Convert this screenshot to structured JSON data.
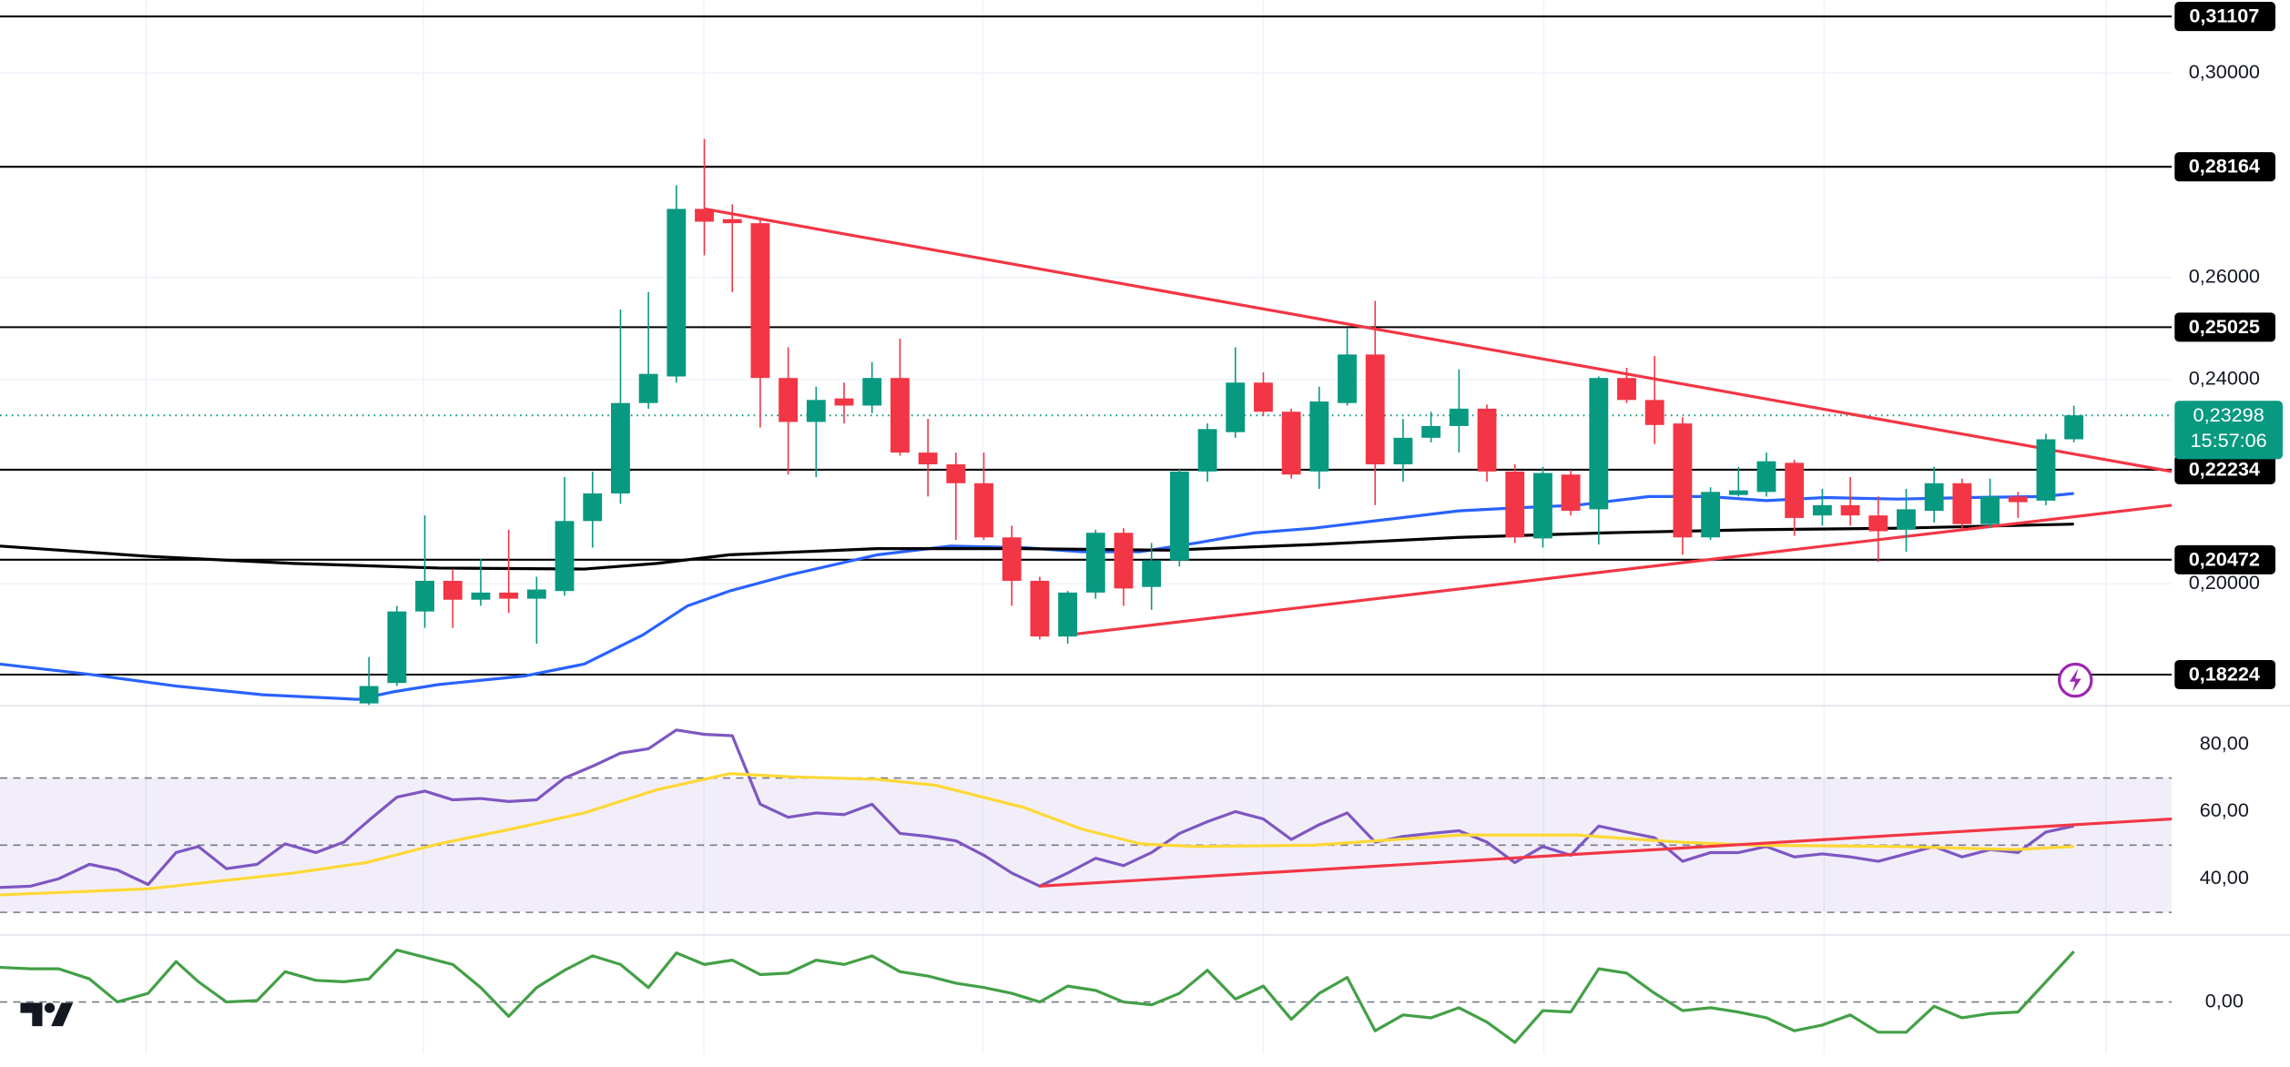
{
  "chart_data": [
    {
      "type": "candlestick",
      "xlim": [
        -12.2,
        65.5
      ],
      "ylim": [
        0.17629,
        0.31429
      ],
      "yticks": [
        {
          "value": 0.3,
          "label": "0,30000"
        },
        {
          "value": 0.26,
          "label": "0,26000"
        },
        {
          "value": 0.24,
          "label": "0,24000"
        },
        {
          "value": 0.2,
          "label": "0,20000"
        }
      ],
      "grid": true,
      "up_color": "#089981",
      "down_color": "#f23645",
      "x": [
        1,
        2,
        3,
        4,
        5,
        6,
        7,
        8,
        9,
        10,
        11,
        12,
        13,
        14,
        15,
        16,
        17,
        18,
        19,
        20,
        21,
        22,
        23,
        24,
        25,
        26,
        27,
        28,
        29,
        30,
        31,
        32,
        33,
        34,
        35,
        36,
        37,
        38,
        39,
        40,
        41,
        42,
        43,
        44,
        45,
        46,
        47,
        48,
        49,
        50,
        51,
        52,
        53,
        54,
        55,
        56,
        57,
        58,
        59,
        60,
        61,
        62
      ],
      "open": [
        0.1766,
        0.1806,
        0.1946,
        0.2006,
        0.1969,
        0.1983,
        0.1971,
        0.1986,
        0.2123,
        0.2177,
        0.2354,
        0.2406,
        0.2734,
        0.2714,
        0.2706,
        0.2403,
        0.2317,
        0.2363,
        0.2349,
        0.2403,
        0.2257,
        0.2234,
        0.2197,
        0.2091,
        0.2006,
        0.1897,
        0.1983,
        0.21,
        0.1994,
        0.2046,
        0.222,
        0.2297,
        0.2394,
        0.2337,
        0.222,
        0.2354,
        0.2449,
        0.2234,
        0.2286,
        0.2309,
        0.2343,
        0.222,
        0.2089,
        0.2214,
        0.2146,
        0.2403,
        0.236,
        0.2314,
        0.2091,
        0.2174,
        0.218,
        0.2237,
        0.2134,
        0.2154,
        0.2134,
        0.2106,
        0.2143,
        0.2197,
        0.2117,
        0.2171,
        0.2163,
        0.2283
      ],
      "high": [
        0.1857,
        0.1957,
        0.2134,
        0.2029,
        0.2049,
        0.2106,
        0.2014,
        0.2209,
        0.222,
        0.2537,
        0.2571,
        0.278,
        0.2871,
        0.2743,
        0.2714,
        0.2463,
        0.2386,
        0.2394,
        0.2434,
        0.248,
        0.2323,
        0.2257,
        0.2257,
        0.2114,
        0.2014,
        0.1986,
        0.2106,
        0.2109,
        0.208,
        0.2226,
        0.2314,
        0.2463,
        0.2414,
        0.2343,
        0.2386,
        0.25,
        0.2554,
        0.2323,
        0.2337,
        0.242,
        0.2351,
        0.2234,
        0.2229,
        0.2223,
        0.2406,
        0.2423,
        0.2446,
        0.2326,
        0.2189,
        0.2229,
        0.2257,
        0.2243,
        0.2186,
        0.2209,
        0.2171,
        0.2186,
        0.2229,
        0.2206,
        0.2206,
        0.218,
        0.2294,
        0.2349
      ],
      "low": [
        0.1763,
        0.18,
        0.1914,
        0.1914,
        0.1957,
        0.1943,
        0.1883,
        0.1977,
        0.2071,
        0.2157,
        0.2343,
        0.2394,
        0.2643,
        0.2571,
        0.2306,
        0.2214,
        0.2209,
        0.2314,
        0.2334,
        0.2251,
        0.2171,
        0.2086,
        0.2086,
        0.1957,
        0.1891,
        0.1883,
        0.1971,
        0.1957,
        0.1949,
        0.2034,
        0.22,
        0.2286,
        0.2329,
        0.2206,
        0.2186,
        0.2349,
        0.2154,
        0.22,
        0.2277,
        0.2257,
        0.22,
        0.208,
        0.2071,
        0.2134,
        0.2077,
        0.2354,
        0.2274,
        0.2057,
        0.2086,
        0.2171,
        0.2171,
        0.2094,
        0.2114,
        0.2114,
        0.2043,
        0.2063,
        0.212,
        0.2106,
        0.2109,
        0.2129,
        0.2154,
        0.2277
      ],
      "close": [
        0.18,
        0.1946,
        0.2006,
        0.1969,
        0.1983,
        0.1971,
        0.1989,
        0.2123,
        0.2177,
        0.2354,
        0.2411,
        0.2734,
        0.2709,
        0.2706,
        0.2403,
        0.2317,
        0.236,
        0.2349,
        0.2403,
        0.2257,
        0.2234,
        0.2197,
        0.2091,
        0.2006,
        0.1897,
        0.1983,
        0.21,
        0.1991,
        0.2046,
        0.222,
        0.2303,
        0.2394,
        0.2337,
        0.2214,
        0.2357,
        0.2449,
        0.2234,
        0.2286,
        0.2309,
        0.2343,
        0.222,
        0.2091,
        0.2217,
        0.2143,
        0.2403,
        0.236,
        0.2311,
        0.2091,
        0.218,
        0.2183,
        0.224,
        0.2129,
        0.2154,
        0.2134,
        0.2103,
        0.2146,
        0.2197,
        0.2117,
        0.2171,
        0.216,
        0.2283,
        0.233
      ],
      "series": [
        {
          "color": "#2962ff",
          "x": [
            -12.2,
            -9.0,
            -5.9,
            -2.8,
            0.6,
            1.9,
            3.5,
            6.6,
            8.7,
            10.8,
            12.4,
            13.9,
            16.0,
            19.2,
            21.8,
            24.4,
            26.5,
            28.6,
            30.6,
            32.7,
            34.8,
            37.4,
            40.0,
            42.1,
            44.2,
            46.8,
            48.9,
            51.0,
            53.1,
            55.7,
            58.3,
            60.9,
            62.0
          ],
          "values": [
            0.1843,
            0.1823,
            0.18,
            0.1783,
            0.1774,
            0.1789,
            0.1803,
            0.182,
            0.1843,
            0.19,
            0.1957,
            0.1986,
            0.2017,
            0.2057,
            0.2074,
            0.2071,
            0.2063,
            0.2063,
            0.208,
            0.21,
            0.2109,
            0.2126,
            0.2143,
            0.2149,
            0.2154,
            0.2171,
            0.2171,
            0.2163,
            0.2169,
            0.2166,
            0.2169,
            0.2171,
            0.2177
          ]
        },
        {
          "color": "#000000",
          "x": [
            -12.2,
            -6.9,
            -1.7,
            3.5,
            8.7,
            11.3,
            13.9,
            19.2,
            24.4,
            29.6,
            34.8,
            40.0,
            45.3,
            50.5,
            55.7,
            62.0
          ],
          "values": [
            0.2074,
            0.2054,
            0.204,
            0.2031,
            0.2029,
            0.204,
            0.2057,
            0.2069,
            0.2069,
            0.2066,
            0.2077,
            0.2091,
            0.21,
            0.2106,
            0.2109,
            0.2117
          ]
        },
        {
          "color": "#f23645",
          "x": [
            13.0,
            65.5
          ],
          "values": [
            0.2734,
            0.222
          ]
        },
        {
          "color": "#f23645",
          "x": [
            26.0,
            65.5
          ],
          "values": [
            0.19,
            0.2154
          ]
        }
      ],
      "levels": [
        {
          "value": 0.31107,
          "label": "0,31107"
        },
        {
          "value": 0.28164,
          "label": "0,28164"
        },
        {
          "value": 0.25025,
          "label": "0,25025"
        },
        {
          "value": 0.22234,
          "label": "0,22234"
        },
        {
          "value": 0.20472,
          "label": "0,20472"
        },
        {
          "value": 0.18224,
          "label": "0,18224"
        }
      ],
      "last_price": {
        "value": 0.23298,
        "label": "0,23298"
      },
      "countdown": "15:57:06"
    },
    {
      "type": "line",
      "xlim": [
        -12.2,
        65.5
      ],
      "ylim": [
        23.5,
        91.3
      ],
      "yticks": [
        {
          "value": 80,
          "label": "80,00"
        },
        {
          "value": 60,
          "label": "60,00"
        },
        {
          "value": 40,
          "label": "40,00"
        }
      ],
      "band": [
        30,
        70
      ],
      "reference_lines": [
        70,
        50,
        30
      ],
      "series": [
        {
          "color": "#7e57c2",
          "x": [
            -12.2,
            -11.1,
            -10.1,
            -9.0,
            -8.0,
            -6.9,
            -5.9,
            -5.1,
            -4.1,
            -3.0,
            -2.0,
            -0.9,
            0.1,
            1,
            2,
            3,
            4,
            5,
            6,
            7,
            8,
            9,
            10,
            11,
            12,
            13,
            14,
            15,
            16,
            17,
            18,
            19,
            20,
            21,
            22,
            23,
            24,
            25,
            26,
            27,
            28,
            29,
            30,
            31,
            32,
            33,
            34,
            35,
            36,
            37,
            38,
            39,
            40,
            41,
            42,
            43,
            44,
            45,
            46,
            47,
            48,
            49,
            50,
            51,
            52,
            53,
            54,
            55,
            56,
            57,
            58,
            59,
            60,
            61,
            62
          ],
          "values": [
            37.4,
            37.8,
            40.0,
            44.3,
            42.6,
            38.3,
            47.8,
            49.6,
            43.0,
            44.3,
            50.4,
            47.8,
            50.9,
            57.4,
            64.3,
            66.1,
            63.5,
            63.9,
            63.0,
            63.5,
            70.0,
            73.5,
            77.4,
            78.7,
            84.3,
            83.0,
            82.6,
            62.2,
            58.3,
            59.6,
            59.1,
            62.2,
            53.5,
            52.6,
            51.3,
            47.0,
            41.7,
            37.8,
            41.7,
            46.1,
            43.9,
            47.8,
            53.5,
            57.0,
            60.0,
            57.8,
            51.7,
            56.1,
            59.6,
            50.9,
            52.6,
            53.5,
            54.3,
            50.9,
            44.8,
            49.6,
            47.0,
            55.7,
            53.9,
            52.2,
            45.2,
            47.8,
            47.8,
            49.6,
            46.5,
            47.4,
            46.5,
            45.2,
            47.4,
            49.6,
            46.5,
            48.7,
            47.8,
            53.9,
            55.7
          ]
        },
        {
          "color": "#fdd835",
          "x": [
            -12.2,
            -6.9,
            -1.7,
            0.9,
            3.5,
            6.1,
            8.7,
            11.3,
            13.9,
            16.0,
            19.2,
            21.3,
            24.4,
            26.5,
            28.6,
            30.6,
            34.8,
            40.0,
            44.2,
            47.9,
            50.5,
            55.7,
            59.9,
            62.0
          ],
          "values": [
            35.2,
            37.0,
            41.7,
            44.8,
            50.4,
            54.8,
            59.6,
            66.5,
            71.3,
            70.4,
            69.6,
            67.8,
            61.3,
            54.8,
            50.4,
            49.6,
            50.0,
            53.0,
            53.0,
            50.9,
            50.0,
            49.6,
            48.7,
            49.6
          ]
        },
        {
          "color": "#f23645",
          "x": [
            25.0,
            65.5
          ],
          "values": [
            37.8,
            57.8
          ]
        }
      ]
    },
    {
      "type": "line",
      "xlim": [
        -12.2,
        65.5
      ],
      "ylim": [
        -36,
        46
      ],
      "yticks": [
        {
          "value": 0,
          "label": "0,00"
        }
      ],
      "reference_lines": [
        0
      ],
      "series": [
        {
          "color": "#43a047",
          "x": [
            -12.2,
            -11.1,
            -10.1,
            -9.0,
            -8.0,
            -6.9,
            -5.9,
            -5.1,
            -4.1,
            -3.0,
            -2.0,
            -0.9,
            0.1,
            1,
            2,
            3,
            4,
            5,
            6,
            7,
            8,
            9,
            10,
            11,
            12,
            13,
            14,
            15,
            16,
            17,
            18,
            19,
            20,
            21,
            22,
            23,
            24,
            25,
            26,
            27,
            28,
            29,
            30,
            31,
            32,
            33,
            34,
            35,
            36,
            37,
            38,
            39,
            40,
            41,
            42,
            43,
            44,
            45,
            46,
            47,
            48,
            49,
            50,
            51,
            52,
            53,
            54,
            55,
            56,
            57,
            58,
            59,
            60,
            61,
            62
          ],
          "values": [
            24,
            23,
            23,
            16,
            0,
            6,
            28,
            14,
            0,
            1,
            21,
            15,
            14,
            16,
            36,
            31,
            26,
            10,
            -10,
            10,
            22,
            32,
            26,
            10,
            34,
            26,
            29,
            19,
            20,
            29,
            26,
            32,
            21,
            18,
            13,
            10,
            6,
            0,
            11,
            8,
            0,
            -2,
            6,
            22,
            2,
            11,
            -12,
            6,
            17,
            -20,
            -9,
            -11,
            -4,
            -14,
            -28,
            -6,
            -7,
            23,
            20,
            6,
            -6,
            -4,
            -7,
            -11,
            -20,
            -16,
            -9,
            -21,
            -21,
            -3,
            -11,
            -8,
            -7,
            14,
            35
          ]
        }
      ]
    }
  ]
}
